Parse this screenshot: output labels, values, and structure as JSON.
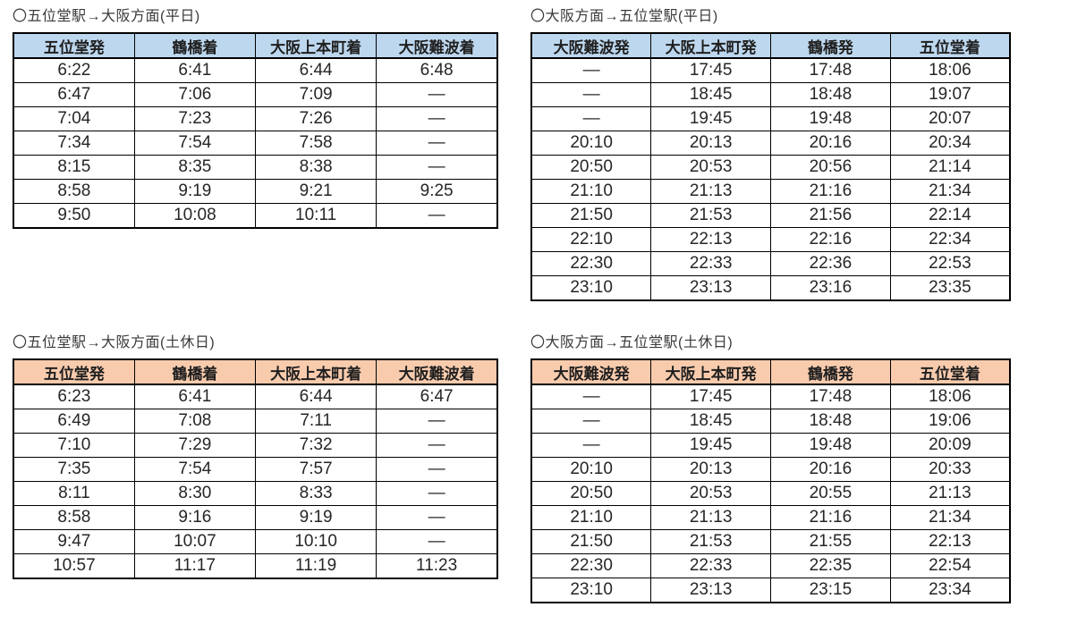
{
  "colors": {
    "weekday_header_bg": "#bdd7ee",
    "holiday_header_bg": "#f8cbad",
    "table_border": "#000000",
    "text": "#262626"
  },
  "no_service_symbol": "—",
  "tables": [
    {
      "id": "weekday-outbound",
      "title": "〇五位堂駅→大阪方面(平日)",
      "header_bg": "#bdd7ee",
      "columns": [
        "五位堂発",
        "鶴橋着",
        "大阪上本町着",
        "大阪難波着"
      ],
      "rows": [
        [
          "6:22",
          "6:41",
          "6:44",
          "6:48"
        ],
        [
          "6:47",
          "7:06",
          "7:09",
          "—"
        ],
        [
          "7:04",
          "7:23",
          "7:26",
          "—"
        ],
        [
          "7:34",
          "7:54",
          "7:58",
          "—"
        ],
        [
          "8:15",
          "8:35",
          "8:38",
          "—"
        ],
        [
          "8:58",
          "9:19",
          "9:21",
          "9:25"
        ],
        [
          "9:50",
          "10:08",
          "10:11",
          "—"
        ]
      ]
    },
    {
      "id": "weekday-inbound",
      "title": "〇大阪方面→五位堂駅(平日)",
      "header_bg": "#bdd7ee",
      "columns": [
        "大阪難波発",
        "大阪上本町発",
        "鶴橋発",
        "五位堂着"
      ],
      "rows": [
        [
          "—",
          "17:45",
          "17:48",
          "18:06"
        ],
        [
          "—",
          "18:45",
          "18:48",
          "19:07"
        ],
        [
          "—",
          "19:45",
          "19:48",
          "20:07"
        ],
        [
          "20:10",
          "20:13",
          "20:16",
          "20:34"
        ],
        [
          "20:50",
          "20:53",
          "20:56",
          "21:14"
        ],
        [
          "21:10",
          "21:13",
          "21:16",
          "21:34"
        ],
        [
          "21:50",
          "21:53",
          "21:56",
          "22:14"
        ],
        [
          "22:10",
          "22:13",
          "22:16",
          "22:34"
        ],
        [
          "22:30",
          "22:33",
          "22:36",
          "22:53"
        ],
        [
          "23:10",
          "23:13",
          "23:16",
          "23:35"
        ]
      ]
    },
    {
      "id": "holiday-outbound",
      "title": "〇五位堂駅→大阪方面(土休日)",
      "header_bg": "#f8cbad",
      "columns": [
        "五位堂発",
        "鶴橋着",
        "大阪上本町着",
        "大阪難波着"
      ],
      "rows": [
        [
          "6:23",
          "6:41",
          "6:44",
          "6:47"
        ],
        [
          "6:49",
          "7:08",
          "7:11",
          "—"
        ],
        [
          "7:10",
          "7:29",
          "7:32",
          "—"
        ],
        [
          "7:35",
          "7:54",
          "7:57",
          "—"
        ],
        [
          "8:11",
          "8:30",
          "8:33",
          "—"
        ],
        [
          "8:58",
          "9:16",
          "9:19",
          "—"
        ],
        [
          "9:47",
          "10:07",
          "10:10",
          "—"
        ],
        [
          "10:57",
          "11:17",
          "11:19",
          "11:23"
        ]
      ]
    },
    {
      "id": "holiday-inbound",
      "title": "〇大阪方面→五位堂駅(土休日)",
      "header_bg": "#f8cbad",
      "columns": [
        "大阪難波発",
        "大阪上本町発",
        "鶴橋発",
        "五位堂着"
      ],
      "rows": [
        [
          "—",
          "17:45",
          "17:48",
          "18:06"
        ],
        [
          "—",
          "18:45",
          "18:48",
          "19:06"
        ],
        [
          "—",
          "19:45",
          "19:48",
          "20:09"
        ],
        [
          "20:10",
          "20:13",
          "20:16",
          "20:33"
        ],
        [
          "20:50",
          "20:53",
          "20:55",
          "21:13"
        ],
        [
          "21:10",
          "21:13",
          "21:16",
          "21:34"
        ],
        [
          "21:50",
          "21:53",
          "21:55",
          "22:13"
        ],
        [
          "22:30",
          "22:33",
          "22:35",
          "22:54"
        ],
        [
          "23:10",
          "23:13",
          "23:15",
          "23:34"
        ]
      ]
    }
  ]
}
